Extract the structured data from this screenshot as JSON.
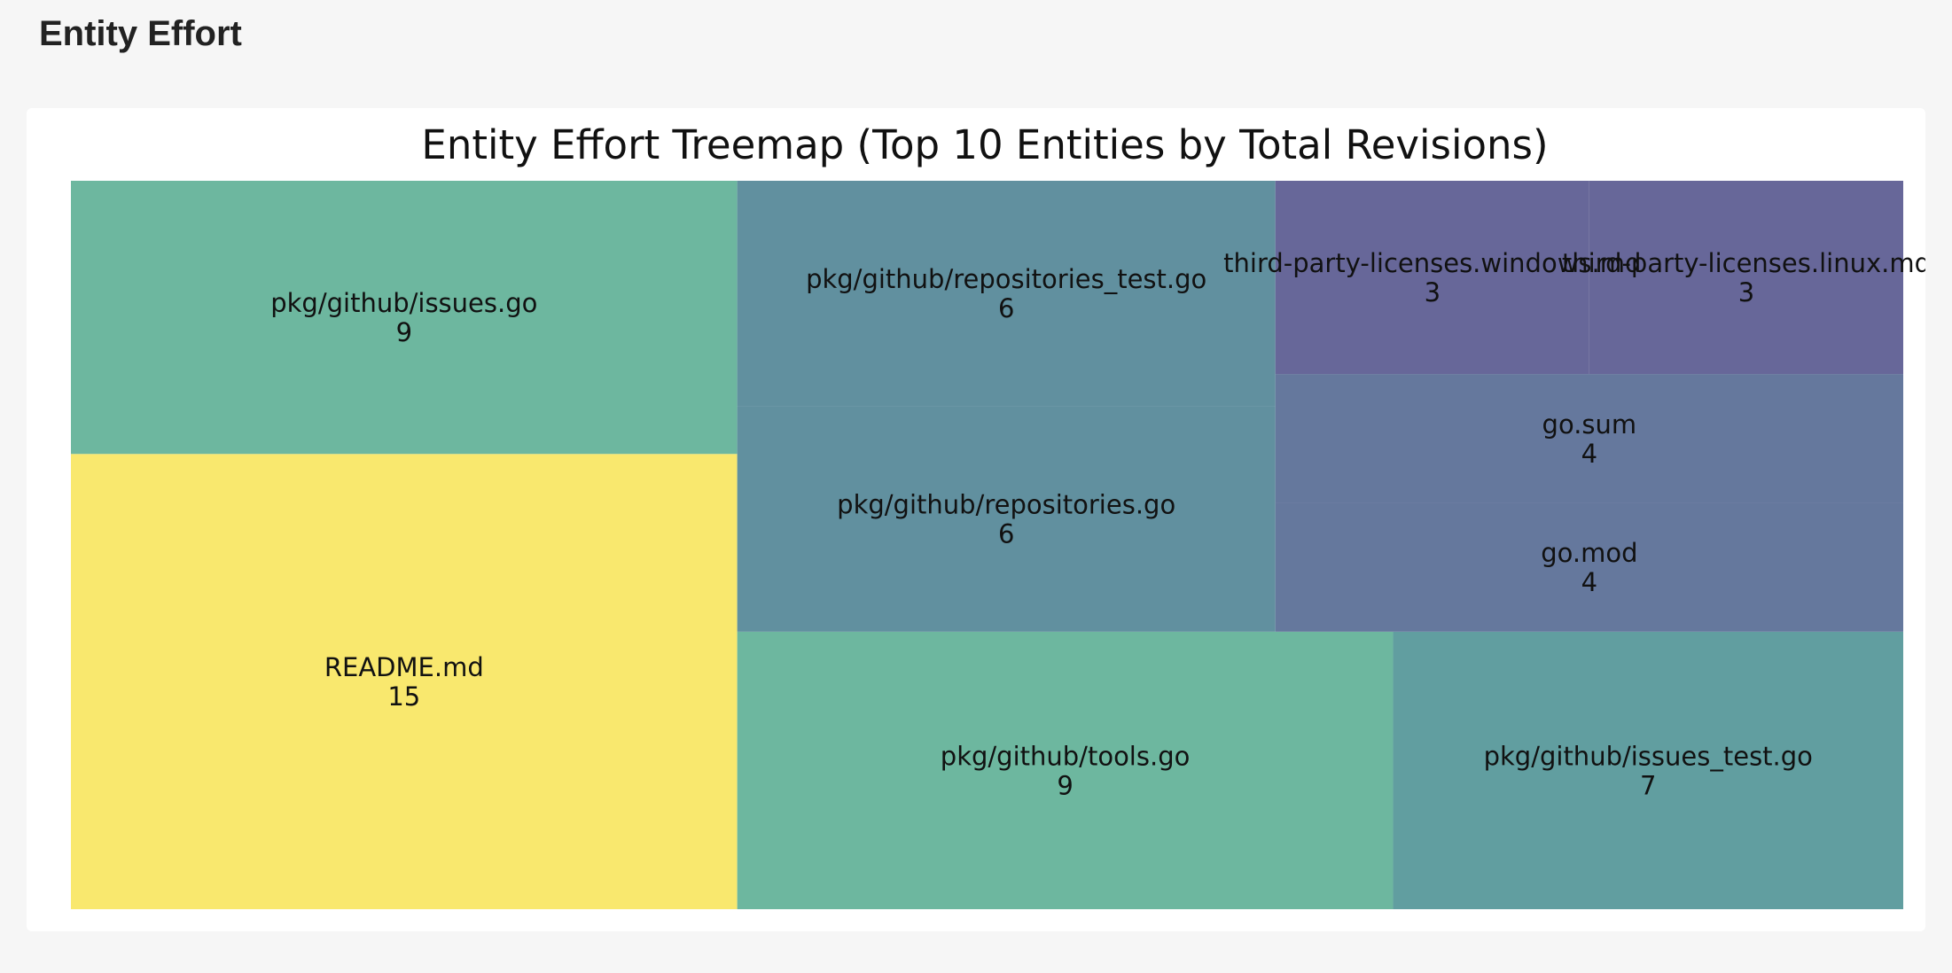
{
  "page": {
    "heading": "Entity Effort"
  },
  "chart_data": {
    "type": "treemap",
    "title": "Entity Effort Treemap (Top 10 Entities by Total Revisions)",
    "xlim": [
      0,
      100
    ],
    "ylim": [
      0,
      100
    ],
    "items": [
      {
        "label": "README.md",
        "value": 15,
        "color": "#f9e86e"
      },
      {
        "label": "pkg/github/issues.go",
        "value": 9,
        "color": "#6db79f"
      },
      {
        "label": "pkg/github/tools.go",
        "value": 9,
        "color": "#6db79f"
      },
      {
        "label": "pkg/github/issues_test.go",
        "value": 7,
        "color": "#619ea0"
      },
      {
        "label": "pkg/github/repositories.go",
        "value": 6,
        "color": "#61909f"
      },
      {
        "label": "pkg/github/repositories_test.go",
        "value": 6,
        "color": "#61909f"
      },
      {
        "label": "go.mod",
        "value": 4,
        "color": "#65789d"
      },
      {
        "label": "go.sum",
        "value": 4,
        "color": "#65789d"
      },
      {
        "label": "third-party-licenses.windows.md",
        "value": 3,
        "color": "#676799"
      },
      {
        "label": "third-party-licenses.linux.md",
        "value": 3,
        "color": "#676799"
      }
    ]
  }
}
